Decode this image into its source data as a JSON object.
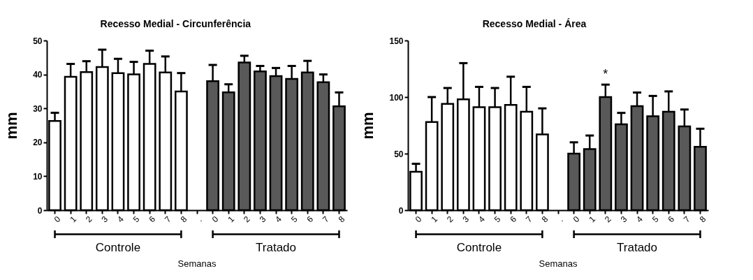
{
  "chart_data": [
    {
      "type": "bar",
      "title": "Recesso Medial - Circunferência",
      "xlabel": "Semanas",
      "ylabel": "mm",
      "categories": [
        "0",
        "1",
        "2",
        "3",
        "4",
        "5",
        "6",
        "7",
        "8",
        ".",
        "0",
        "1",
        "2",
        "3",
        "4",
        "5",
        "6",
        "7",
        "8"
      ],
      "values": [
        26.3,
        39.3,
        40.7,
        42.2,
        40.4,
        40.0,
        43.1,
        40.6,
        35.0,
        null,
        38.0,
        34.7,
        43.5,
        40.9,
        39.5,
        38.7,
        40.6,
        37.7,
        30.6
      ],
      "errors": [
        [
          26.3,
          28.7
        ],
        [
          39.3,
          43.1
        ],
        [
          40.7,
          43.9
        ],
        [
          42.2,
          47.3
        ],
        [
          40.4,
          44.6
        ],
        [
          40.0,
          43.7
        ],
        [
          43.1,
          47.0
        ],
        [
          40.6,
          45.3
        ],
        [
          35.0,
          40.4
        ],
        null,
        [
          38.0,
          42.8
        ],
        [
          34.7,
          37.1
        ],
        [
          43.5,
          45.5
        ],
        [
          40.9,
          42.5
        ],
        [
          39.5,
          41.9
        ],
        [
          38.7,
          42.5
        ],
        [
          40.6,
          44.0
        ],
        [
          37.7,
          40.0
        ],
        [
          30.6,
          34.7
        ]
      ],
      "colors": [
        "#ffffff",
        "#ffffff",
        "#ffffff",
        "#ffffff",
        "#ffffff",
        "#ffffff",
        "#ffffff",
        "#ffffff",
        "#ffffff",
        null,
        "#595959",
        "#595959",
        "#595959",
        "#595959",
        "#595959",
        "#595959",
        "#595959",
        "#595959",
        "#595959"
      ],
      "ylim": [
        0,
        50
      ],
      "yticks": [
        0,
        10,
        20,
        30,
        40,
        50
      ],
      "annotations": [
        "Controle",
        "Tratado"
      ]
    },
    {
      "type": "bar",
      "title": "Recesso Medial - Área",
      "xlabel": "Semanas",
      "ylabel": "mm",
      "categories": [
        "0",
        "1",
        "2",
        "3",
        "4",
        "5",
        "6",
        "7",
        "8",
        ".",
        "0",
        "1",
        "2",
        "3",
        "4",
        "5",
        "6",
        "7",
        "8"
      ],
      "values": [
        34,
        78,
        94,
        98,
        91,
        91,
        93,
        87,
        67,
        null,
        50,
        54,
        100,
        76,
        92,
        83,
        87,
        74,
        56
      ],
      "errors": [
        [
          34,
          41
        ],
        [
          78,
          100
        ],
        [
          94,
          108
        ],
        [
          98,
          130
        ],
        [
          91,
          109
        ],
        [
          91,
          108
        ],
        [
          93,
          118
        ],
        [
          87,
          109
        ],
        [
          67,
          90
        ],
        null,
        [
          50,
          60
        ],
        [
          54,
          66
        ],
        [
          100,
          111
        ],
        [
          76,
          86
        ],
        [
          92,
          104
        ],
        [
          83,
          101
        ],
        [
          87,
          105
        ],
        [
          74,
          89
        ],
        [
          56,
          72
        ]
      ],
      "colors": [
        "#ffffff",
        "#ffffff",
        "#ffffff",
        "#ffffff",
        "#ffffff",
        "#ffffff",
        "#ffffff",
        "#ffffff",
        "#ffffff",
        null,
        "#595959",
        "#595959",
        "#595959",
        "#595959",
        "#595959",
        "#595959",
        "#595959",
        "#595959",
        "#595959"
      ],
      "value_labels": [
        null,
        null,
        null,
        null,
        null,
        null,
        null,
        null,
        null,
        null,
        null,
        null,
        "*",
        null,
        null,
        null,
        null,
        null,
        null
      ],
      "ylim": [
        0,
        150
      ],
      "yticks": [
        0,
        50,
        100,
        150
      ],
      "annotations": [
        "Controle",
        "Tratado"
      ]
    }
  ]
}
